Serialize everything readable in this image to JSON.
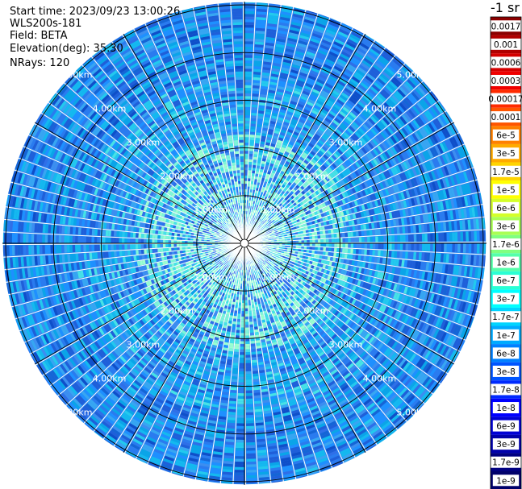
{
  "info": {
    "start_time": "Start time: 2023/09/23 13:00:26",
    "instrument": "WLS200s-181",
    "field": "Field: BETA",
    "elevation": "Elevation(deg): 35.30",
    "nrays": "NRays: 120"
  },
  "chart_data": {
    "type": "heatmap",
    "projection": "polar (PPI scan)",
    "field": "BETA",
    "n_rays": 120,
    "range_rings_km": [
      1,
      2,
      3,
      4,
      5
    ],
    "range_labels": [
      "1.00km",
      "2.00km",
      "3.00km",
      "4.00km",
      "5.00km"
    ],
    "grid": true,
    "colorbar_title": "-1 sr",
    "colorbar_ticks": [
      "0.0017",
      "0.001",
      "0.0006",
      "0.0003",
      "0.00017",
      "0.0001",
      "6e-5",
      "3e-5",
      "1.7e-5",
      "1e-5",
      "6e-6",
      "3e-6",
      "1.7e-6",
      "1e-6",
      "6e-7",
      "3e-7",
      "1.7e-7",
      "1e-7",
      "6e-8",
      "3e-8",
      "1.7e-8",
      "1e-8",
      "6e-9",
      "3e-9",
      "1.7e-9",
      "1e-9"
    ],
    "colorbar_colors": [
      "#8b0000",
      "#b00000",
      "#d40000",
      "#f00000",
      "#ff2a00",
      "#ff5500",
      "#ff8000",
      "#ffaa00",
      "#ffd400",
      "#ffff00",
      "#d4ff2a",
      "#aaff55",
      "#80ff80",
      "#55ffaa",
      "#2affd4",
      "#00ffff",
      "#00d4ff",
      "#00aaff",
      "#0080ff",
      "#0055ff",
      "#002aff",
      "#0000ff",
      "#0000d4",
      "#0000aa",
      "#000080",
      "#00006a"
    ],
    "dominant_levels": [
      "1e-8",
      "3e-8",
      "1e-7",
      "1.7e-7"
    ]
  }
}
